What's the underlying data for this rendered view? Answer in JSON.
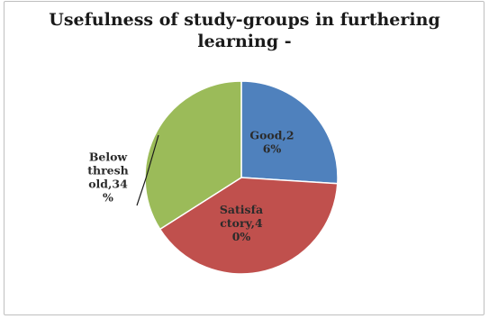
{
  "chart_data": {
    "type": "pie",
    "title_lines": [
      "Usefulness of study-groups in furthering",
      "learning -"
    ],
    "slices": [
      {
        "label": "Good",
        "value": 26,
        "color": "#4f81bd",
        "label_lines": [
          "Good,2",
          "6%"
        ]
      },
      {
        "label": "Satisfactory",
        "value": 40,
        "color": "#c0504d",
        "label_lines": [
          "Satisfa",
          "ctory,4",
          "0%"
        ]
      },
      {
        "label": "Below threshold",
        "value": 34,
        "color": "#9bbb59",
        "label_lines": [
          "Below",
          "thresh",
          "old,34",
          "%"
        ]
      }
    ],
    "start_angle_deg": 0,
    "direction": "clockwise",
    "legend": "none"
  }
}
